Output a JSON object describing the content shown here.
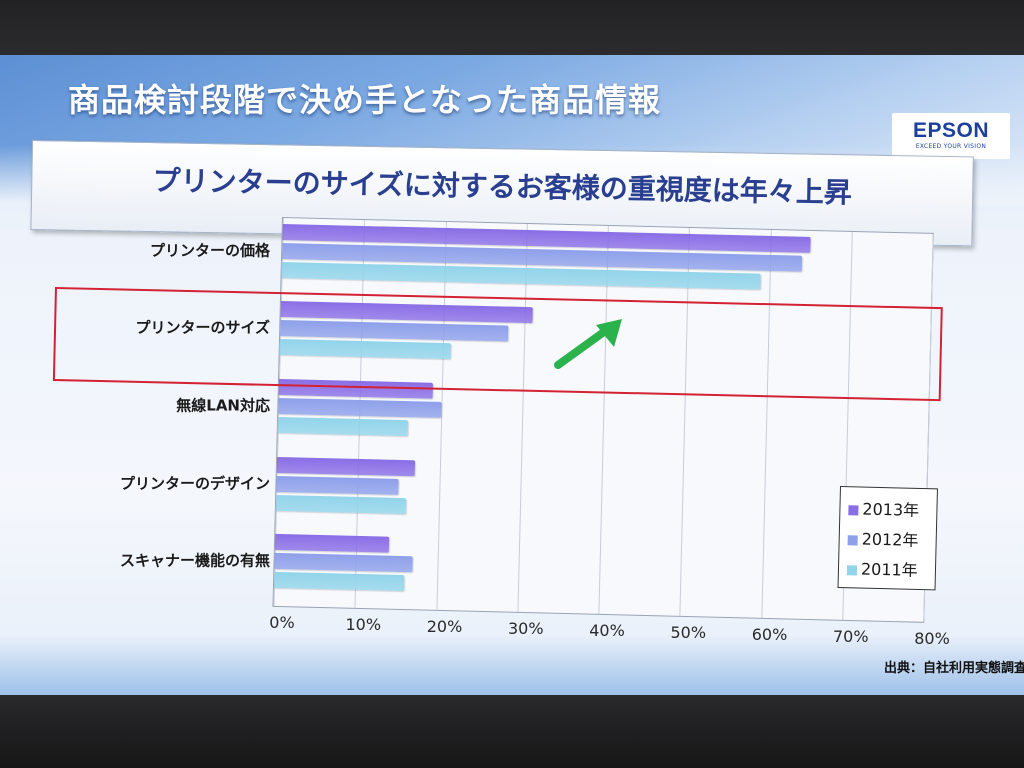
{
  "slide": {
    "title": "商品検討段階で決め手となった商品情報",
    "subtitle": "プリンターのサイズに対するお客様の重視度は年々上昇",
    "logo_text": "EPSON",
    "logo_tagline": "EXCEED YOUR VISION",
    "source": "出典：自社利用実態調査"
  },
  "colors": {
    "series_2013": "#8a6ee6",
    "series_2012": "#8ea0ea",
    "series_2011": "#92d4ea",
    "highlight": "#d22233",
    "arrow": "#2bb24c"
  },
  "chart_data": {
    "type": "bar",
    "orientation": "horizontal",
    "categories": [
      "プリンターの価格",
      "プリンターのサイズ",
      "無線LAN対応",
      "プリンターのデザイン",
      "スキャナー機能の有無"
    ],
    "series": [
      {
        "name": "2013年",
        "values": [
          65,
          31,
          19,
          17,
          14
        ]
      },
      {
        "name": "2012年",
        "values": [
          64,
          28,
          20,
          15,
          17
        ]
      },
      {
        "name": "2011年",
        "values": [
          59,
          21,
          16,
          16,
          16
        ]
      }
    ],
    "xlim": [
      0,
      80
    ],
    "x_ticks": [
      "0%",
      "10%",
      "20%",
      "30%",
      "40%",
      "50%",
      "60%",
      "70%",
      "80%"
    ],
    "grid": "vertical",
    "legend": "bottom-right",
    "highlighted_category": "プリンターのサイズ"
  }
}
